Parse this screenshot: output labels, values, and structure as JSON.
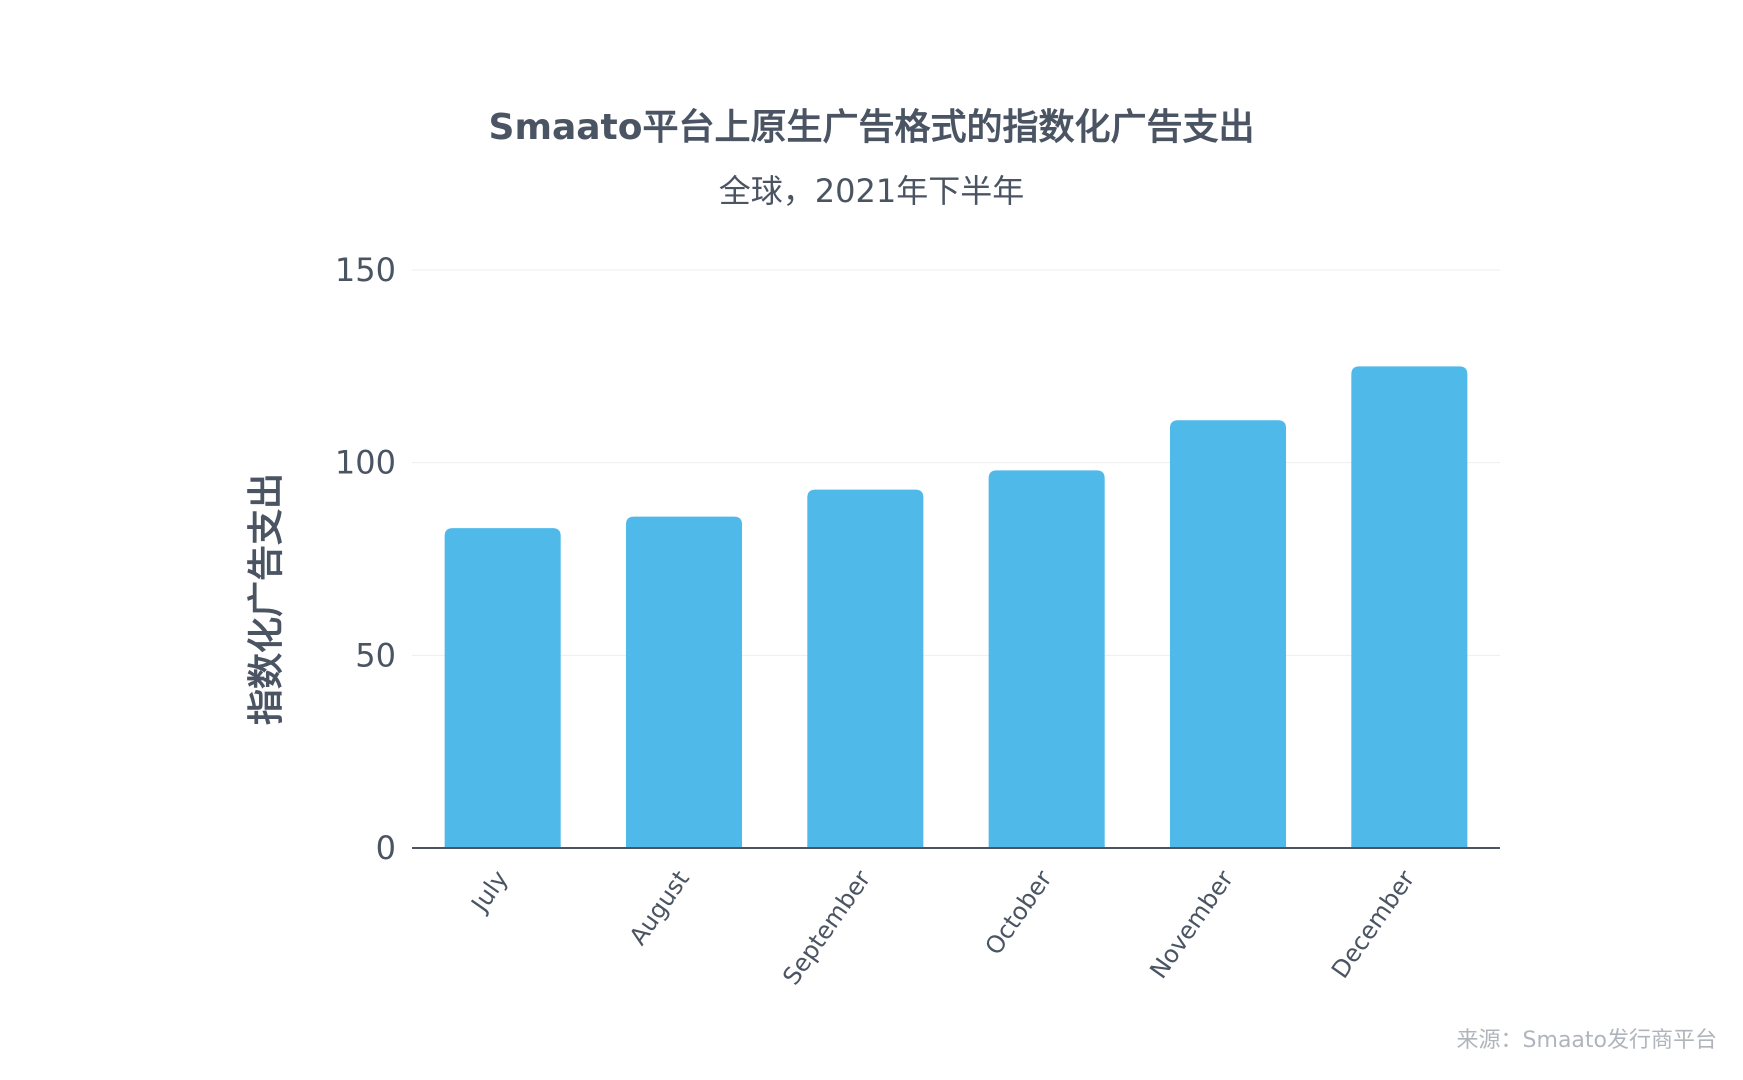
{
  "header": {
    "title": "Smaato平台上原生广告格式的指数化广告支出",
    "subtitle": "全球，2021年下半年"
  },
  "footer": {
    "source": "来源：Smaato发行商平台"
  },
  "colors": {
    "bar": "#4fb9e9",
    "text": "#4a5463",
    "grid": "#eeeeee",
    "axis": "#4a5463",
    "source": "#b0b5bc"
  },
  "chart_data": {
    "type": "bar",
    "categories": [
      "July",
      "August",
      "September",
      "October",
      "November",
      "December"
    ],
    "series": [
      {
        "values": [
          83,
          86,
          93,
          98,
          111,
          125
        ]
      }
    ],
    "ylabel": "指数化广告支出",
    "xlabel": "",
    "ylim": [
      0,
      150
    ],
    "yticks": [
      0,
      50,
      100,
      150
    ],
    "grid": true,
    "legend": "none"
  }
}
